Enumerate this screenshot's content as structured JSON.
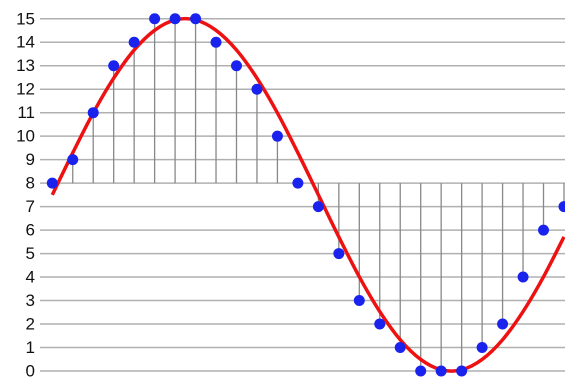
{
  "chart_data": {
    "type": "sampled-wave",
    "x": [
      0,
      1,
      2,
      3,
      4,
      5,
      6,
      7,
      8,
      9,
      10,
      11,
      12,
      13,
      14,
      15,
      16,
      17,
      18,
      19,
      20,
      21,
      22,
      23,
      24,
      25
    ],
    "curve": {
      "color": "#ee1111",
      "values": [
        7.5,
        9.29,
        10.99,
        12.47,
        13.67,
        14.51,
        14.95,
        14.95,
        14.51,
        13.67,
        12.47,
        10.99,
        9.29,
        7.5,
        5.71,
        4.01,
        2.53,
        1.33,
        0.49,
        0.05,
        0.05,
        0.49,
        1.33,
        2.53,
        4.01,
        5.71
      ]
    },
    "samples": {
      "color": "#1a22ee",
      "values": [
        8,
        9,
        11,
        13,
        14,
        15,
        15,
        15,
        14,
        13,
        12,
        10,
        8,
        7,
        5,
        3,
        2,
        1,
        0,
        0,
        0,
        1,
        2,
        4,
        6,
        7
      ]
    },
    "baseline": 8,
    "xlim": [
      -0.6,
      25.05
    ],
    "ylim": [
      -0.3,
      15.8
    ],
    "yticks": [
      0,
      1,
      2,
      3,
      4,
      5,
      6,
      7,
      8,
      9,
      10,
      11,
      12,
      13,
      14,
      15
    ],
    "grid": true
  }
}
